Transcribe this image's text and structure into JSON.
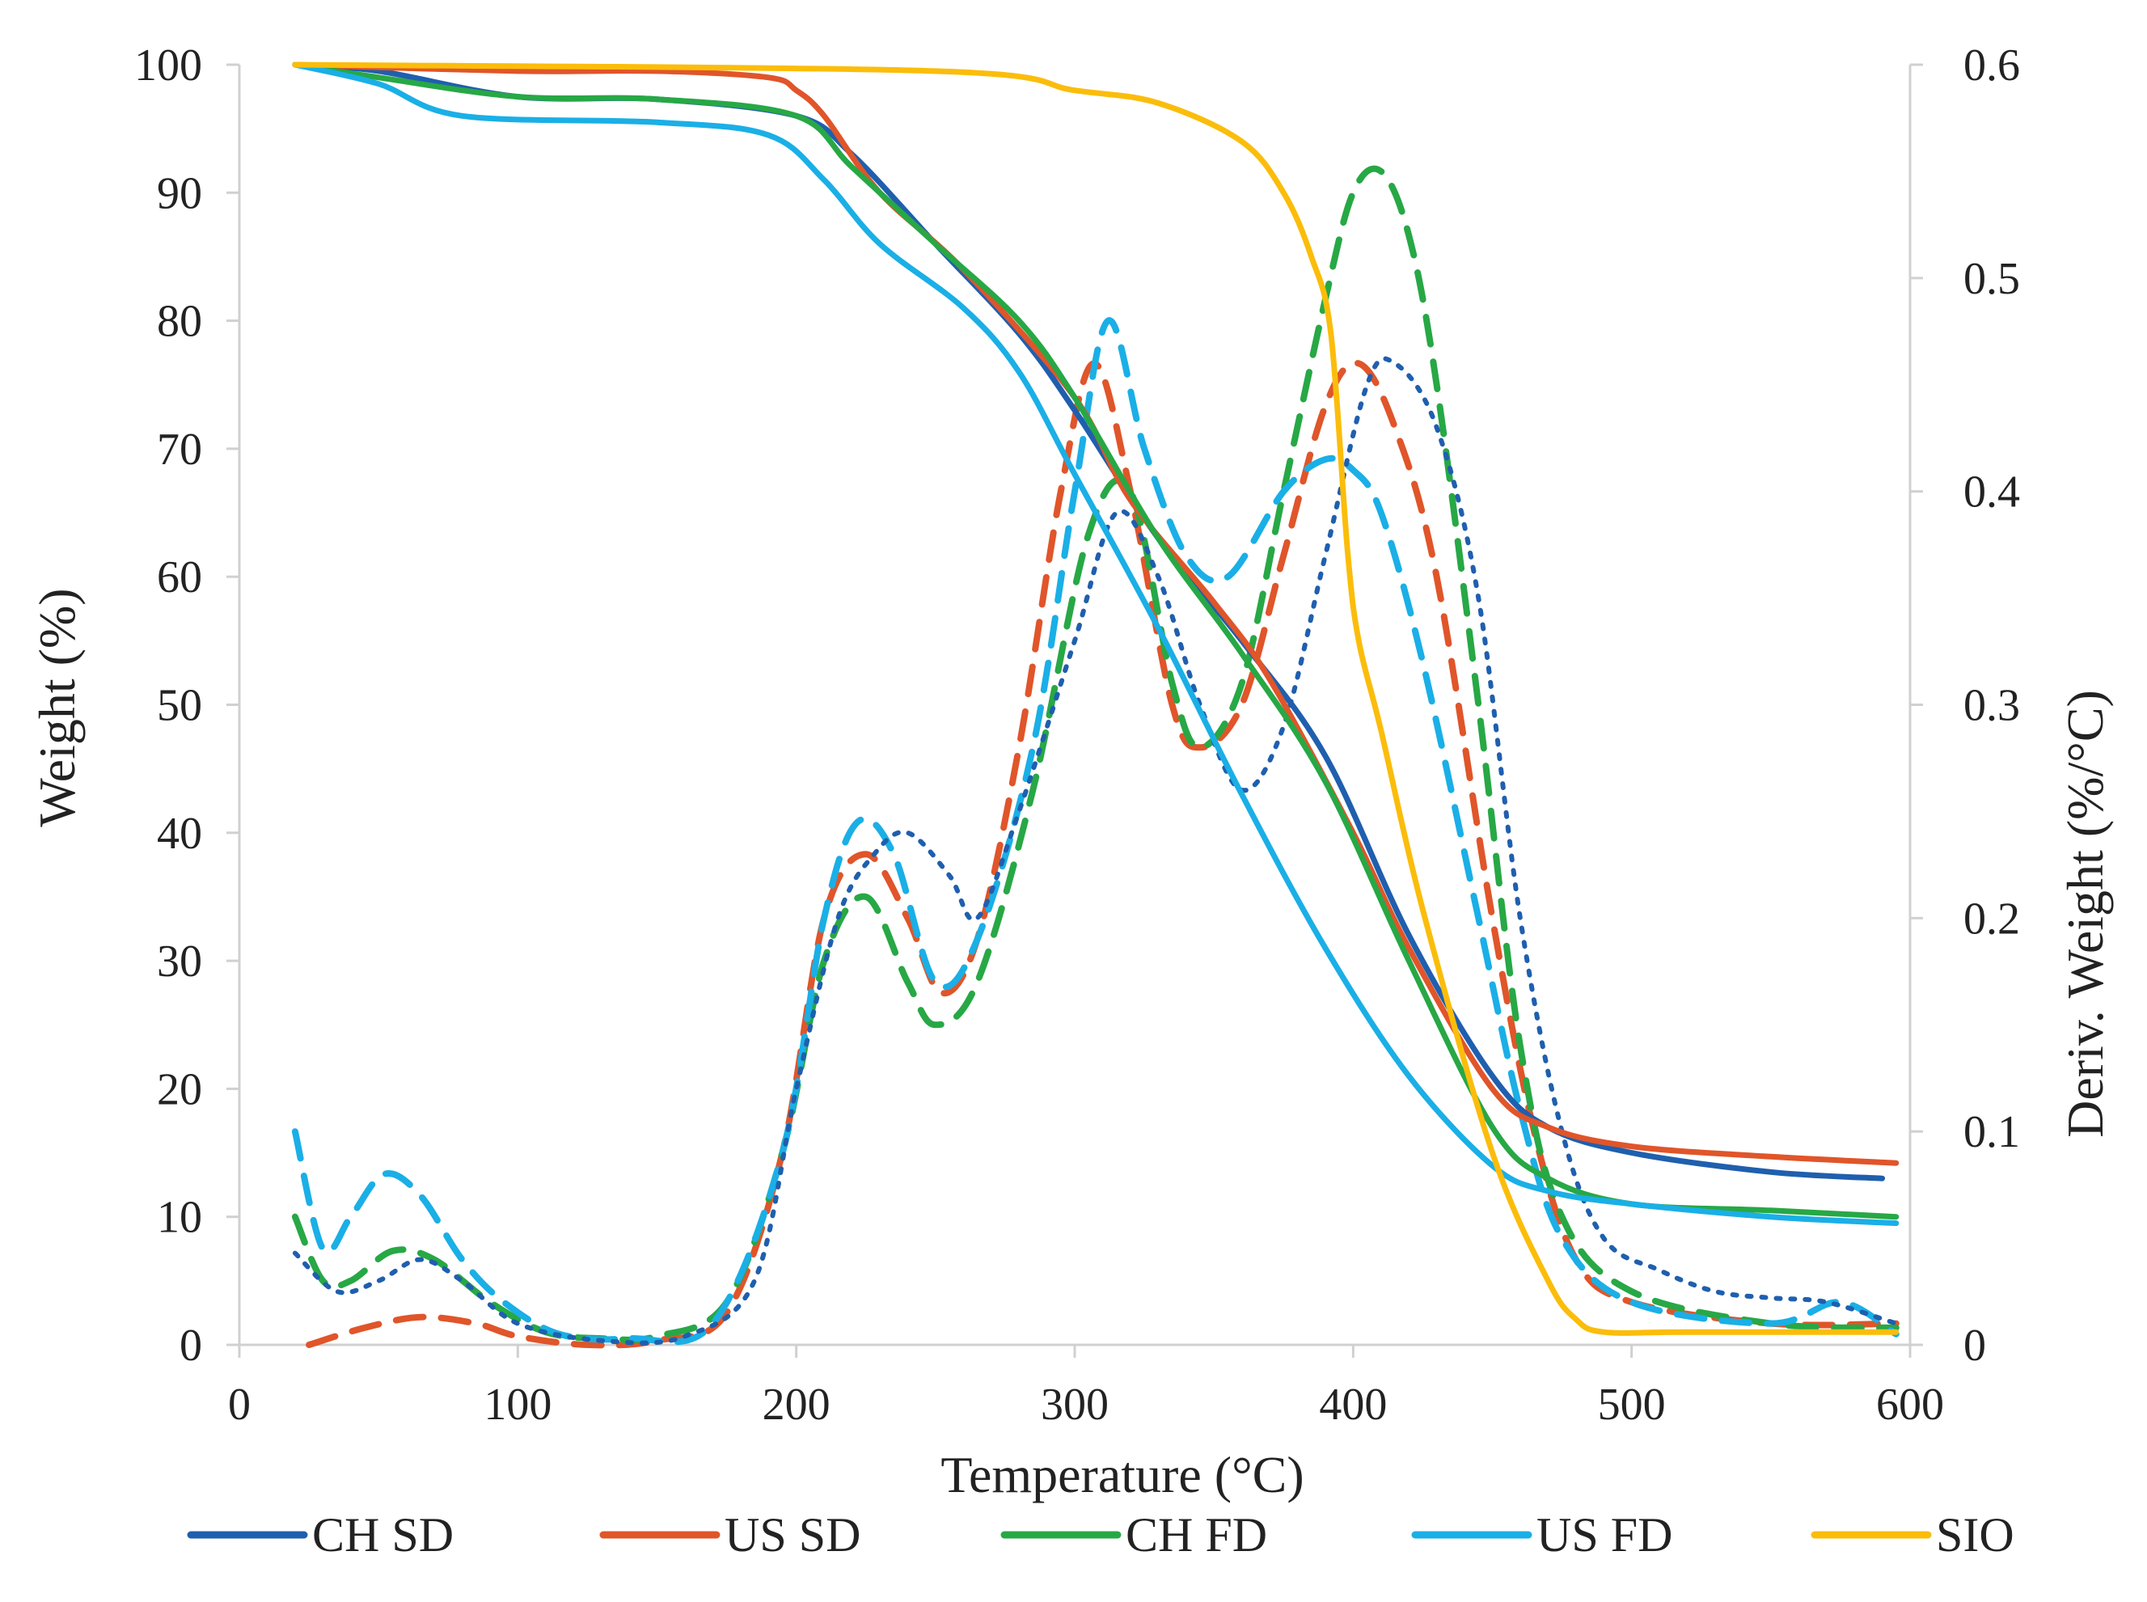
{
  "chart_data": {
    "type": "line",
    "xlabel": "Temperature (°C)",
    "ylabel": "Weight (%)",
    "y2label": "Deriv. Weight (%/°C)",
    "xlim": [
      0,
      600
    ],
    "ylim": [
      0,
      100
    ],
    "y2lim": [
      0,
      0.6
    ],
    "xticks": [
      "0",
      "100",
      "200",
      "300",
      "400",
      "500",
      "600"
    ],
    "yticks": [
      "0",
      "10",
      "20",
      "30",
      "40",
      "50",
      "60",
      "70",
      "80",
      "90",
      "100"
    ],
    "y2ticks": [
      "0",
      "0.1",
      "0.2",
      "0.3",
      "0.4",
      "0.5",
      "0.6"
    ],
    "grid": false,
    "legend_position": "bottom",
    "legend": [
      "CH SD",
      "US SD",
      "CH FD",
      "US FD",
      "SIO"
    ],
    "colors": {
      "CH SD": "#1f5fae",
      "US SD": "#e0552a",
      "CH FD": "#27a845",
      "US FD": "#1aafe6",
      "SIO": "#fbbd0b"
    },
    "weight_series": [
      {
        "name": "CH SD",
        "axis": "left",
        "style": "solid",
        "x": [
          20,
          50,
          100,
          150,
          200,
          220,
          250,
          280,
          300,
          330,
          360,
          390,
          420,
          450,
          470,
          500,
          550,
          590
        ],
        "y": [
          100,
          99.5,
          97.5,
          97.3,
          96,
          93,
          86,
          79,
          73,
          63,
          55,
          46,
          32,
          21,
          17,
          15,
          13.5,
          13
        ]
      },
      {
        "name": "US SD",
        "axis": "left",
        "style": "solid",
        "x": [
          20,
          100,
          150,
          190,
          200,
          210,
          230,
          260,
          300,
          320,
          350,
          370,
          400,
          420,
          450,
          470,
          500,
          550,
          595
        ],
        "y": [
          100,
          99.5,
          99.5,
          99,
          98,
          96,
          90,
          84,
          74,
          66,
          58,
          52,
          40,
          31,
          20,
          17,
          15.5,
          14.7,
          14.2
        ]
      },
      {
        "name": "CH FD",
        "axis": "left",
        "style": "solid",
        "x": [
          20,
          50,
          100,
          150,
          200,
          220,
          250,
          280,
          300,
          330,
          360,
          390,
          420,
          450,
          470,
          500,
          550,
          595
        ],
        "y": [
          100,
          99,
          97.5,
          97.3,
          96,
          92,
          86,
          80,
          74,
          63,
          54,
          44,
          30,
          17,
          13,
          11,
          10.5,
          10
        ]
      },
      {
        "name": "US FD",
        "axis": "left",
        "style": "solid",
        "x": [
          20,
          50,
          80,
          150,
          190,
          210,
          230,
          260,
          280,
          300,
          330,
          360,
          390,
          420,
          450,
          470,
          500,
          550,
          595
        ],
        "y": [
          100,
          98.5,
          96,
          95.5,
          94.5,
          91,
          86,
          81,
          76,
          68,
          56,
          43,
          31,
          21,
          14,
          12,
          11,
          10,
          9.5
        ]
      },
      {
        "name": "SIO",
        "axis": "left",
        "style": "solid",
        "x": [
          20,
          250,
          300,
          330,
          360,
          375,
          385,
          392,
          398,
          402,
          410,
          425,
          450,
          470,
          480,
          490,
          520,
          595
        ],
        "y": [
          100,
          99.5,
          98,
          97,
          94,
          90,
          85,
          79,
          62,
          55,
          48,
          34,
          15,
          5,
          2,
          1,
          1,
          1
        ]
      }
    ],
    "deriv_series": [
      {
        "name": "US SD deriv.",
        "axis": "right",
        "style": "dashed",
        "color": "#e0552a",
        "x": [
          25,
          45,
          65,
          85,
          100,
          125,
          150,
          175,
          195,
          210,
          225,
          240,
          252,
          265,
          280,
          295,
          307,
          320,
          335,
          345,
          360,
          375,
          390,
          402,
          415,
          430,
          450,
          465,
          480,
          500,
          550,
          595
        ],
        "y": [
          0.0,
          0.008,
          0.013,
          0.01,
          0.004,
          0.0,
          0.002,
          0.015,
          0.09,
          0.2,
          0.23,
          0.2,
          0.165,
          0.19,
          0.28,
          0.4,
          0.46,
          0.4,
          0.3,
          0.28,
          0.3,
          0.37,
          0.44,
          0.46,
          0.43,
          0.36,
          0.2,
          0.1,
          0.04,
          0.02,
          0.01,
          0.01
        ]
      },
      {
        "name": "CH FD deriv.",
        "axis": "right",
        "style": "dashed",
        "color": "#27a845",
        "x": [
          20,
          30,
          40,
          55,
          70,
          90,
          110,
          130,
          150,
          175,
          195,
          210,
          225,
          240,
          250,
          265,
          285,
          305,
          320,
          335,
          345,
          360,
          375,
          390,
          400,
          410,
          420,
          430,
          445,
          460,
          475,
          500,
          550,
          595
        ],
        "y": [
          0.06,
          0.03,
          0.03,
          0.044,
          0.04,
          0.02,
          0.006,
          0.003,
          0.004,
          0.02,
          0.09,
          0.18,
          0.21,
          0.17,
          0.15,
          0.17,
          0.26,
          0.38,
          0.4,
          0.31,
          0.28,
          0.31,
          0.4,
          0.49,
          0.54,
          0.55,
          0.52,
          0.45,
          0.3,
          0.14,
          0.06,
          0.025,
          0.01,
          0.008
        ]
      },
      {
        "name": "US FD deriv.",
        "axis": "right",
        "style": "dashed",
        "color": "#1aafe6",
        "x": [
          20,
          30,
          40,
          52,
          65,
          80,
          95,
          115,
          140,
          170,
          195,
          210,
          222,
          235,
          250,
          265,
          285,
          300,
          312,
          325,
          340,
          355,
          375,
          390,
          400,
          410,
          425,
          445,
          460,
          475,
          500,
          550,
          575,
          595
        ],
        "y": [
          0.1,
          0.045,
          0.06,
          0.08,
          0.07,
          0.04,
          0.02,
          0.005,
          0.003,
          0.01,
          0.09,
          0.2,
          0.245,
          0.23,
          0.17,
          0.19,
          0.28,
          0.4,
          0.48,
          0.42,
          0.37,
          0.36,
          0.4,
          0.415,
          0.41,
          0.39,
          0.32,
          0.2,
          0.11,
          0.05,
          0.02,
          0.01,
          0.02,
          0.005
        ]
      },
      {
        "name": "CH SD deriv.",
        "axis": "right",
        "style": "dotted",
        "color": "#1f5fae",
        "x": [
          20,
          35,
          50,
          65,
          80,
          100,
          130,
          160,
          185,
          200,
          215,
          228,
          240,
          255,
          265,
          280,
          300,
          315,
          330,
          345,
          360,
          375,
          390,
          405,
          415,
          430,
          445,
          460,
          475,
          490,
          510,
          530,
          550,
          570,
          595
        ],
        "y": [
          0.043,
          0.025,
          0.03,
          0.04,
          0.03,
          0.01,
          0.002,
          0.004,
          0.03,
          0.12,
          0.2,
          0.23,
          0.24,
          0.22,
          0.2,
          0.25,
          0.33,
          0.39,
          0.36,
          0.3,
          0.26,
          0.29,
          0.37,
          0.45,
          0.46,
          0.43,
          0.35,
          0.2,
          0.1,
          0.05,
          0.035,
          0.025,
          0.022,
          0.02,
          0.01
        ]
      }
    ]
  }
}
